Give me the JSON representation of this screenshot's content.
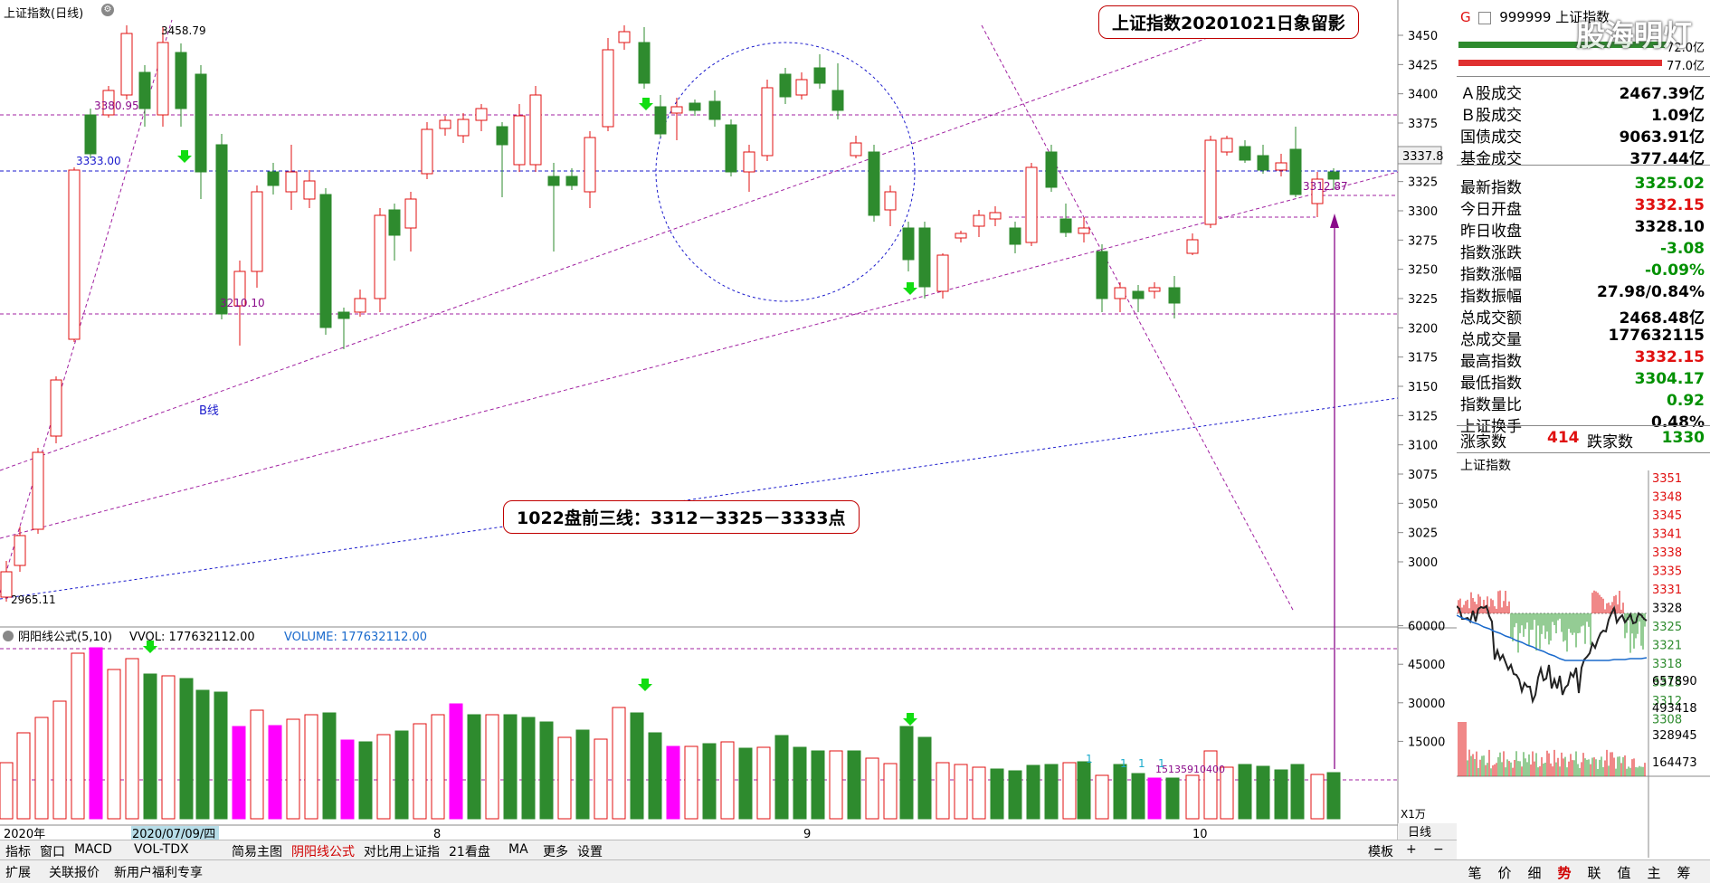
{
  "header": {
    "title": "上证指数(日线)"
  },
  "annotations": {
    "title_box": "上证指数20201021日象留影",
    "three_lines": "1022盘前三线：3312－3325－3333点",
    "b_line": "B线"
  },
  "price_labels": {
    "p3458": "3458.79",
    "p3380": "3380.95",
    "p3333": "3333.00",
    "p3210": "3210.10",
    "p2965": "2965.11",
    "p3312": "3312.87"
  },
  "price_axis": [
    "3450",
    "3425",
    "3400",
    "3375",
    "3350",
    "3325",
    "3300",
    "3275",
    "3250",
    "3225",
    "3200",
    "3175",
    "3150",
    "3125",
    "3100",
    "3075",
    "3050",
    "3025",
    "3000"
  ],
  "price_current": "3337.8",
  "date_axis": {
    "year": "2020年",
    "highlight": "2020/07/09/四",
    "m8": "8",
    "m9": "9",
    "m10": "10",
    "period": "日线"
  },
  "volume_header": {
    "name": "阴阳线公式(5,10)",
    "vvol": "VVOL: 177632112.00",
    "volume": "VOLUME: 177632112.00",
    "marker": "15135910400",
    "unit": "X1万"
  },
  "volume_axis": [
    "60000",
    "45000",
    "30000",
    "15000"
  ],
  "volume_ones": [
    "1",
    "1",
    "1",
    "1"
  ],
  "tabs": [
    "指标",
    "窗口",
    "MACD",
    "VOL-TDX",
    "简易主图",
    "阴阳线公式",
    "对比用上证指",
    "21看盘",
    "MA",
    "更多",
    "设置"
  ],
  "tabs_active": "阴阳线公式",
  "tab_right": "模板",
  "bottom_links": [
    "扩展",
    "关联报价",
    "新用户福利专享"
  ],
  "quote": {
    "code_prefix": "G",
    "code": "999999 上证指数",
    "amount_top": "72.0亿",
    "amount_bottom": "77.0亿",
    "rows": [
      {
        "label": "Ａ股成交",
        "value": "2467.39亿",
        "color": "black"
      },
      {
        "label": "Ｂ股成交",
        "value": "1.09亿",
        "color": "black"
      },
      {
        "label": "国债成交",
        "value": "9063.91亿",
        "color": "black"
      },
      {
        "label": "基金成交",
        "value": "377.44亿",
        "color": "black"
      },
      {
        "label": "最新指数",
        "value": "3325.02",
        "color": "green"
      },
      {
        "label": "今日开盘",
        "value": "3332.15",
        "color": "red"
      },
      {
        "label": "昨日收盘",
        "value": "3328.10",
        "color": "black"
      },
      {
        "label": "指数涨跌",
        "value": "-3.08",
        "color": "green"
      },
      {
        "label": "指数涨幅",
        "value": "-0.09%",
        "color": "green"
      },
      {
        "label": "指数振幅",
        "value": "27.98/0.84%",
        "color": "black"
      },
      {
        "label": "总成交额",
        "value": "2468.48亿",
        "color": "black"
      },
      {
        "label": "总成交量",
        "value": "177632115",
        "color": "black"
      },
      {
        "label": "最高指数",
        "value": "3332.15",
        "color": "red"
      },
      {
        "label": "最低指数",
        "value": "3304.17",
        "color": "green"
      },
      {
        "label": "指数量比",
        "value": "0.92",
        "color": "green"
      },
      {
        "label": "上证换手",
        "value": "0.48%",
        "color": "black"
      }
    ],
    "up_label": "涨家数",
    "up_value": "414",
    "down_label": "跌家数",
    "down_value": "1330"
  },
  "intraday": {
    "title": "上证指数",
    "price_axis": [
      "3351",
      "3348",
      "3345",
      "3341",
      "3338",
      "3335",
      "3331",
      "3328",
      "3325",
      "3321",
      "3318",
      "3315",
      "3312",
      "3308"
    ],
    "vol_axis": [
      "657890",
      "493418",
      "328945",
      "164473"
    ]
  },
  "nav": [
    "笔",
    "价",
    "细",
    "势",
    "联",
    "值",
    "主",
    "筹"
  ],
  "nav_active": "势",
  "watermark": "股海明灯",
  "colors": {
    "up": "#e01010",
    "down": "#2e8b2e",
    "pink": "#ff00ff",
    "dashed_purple": "#a020a0",
    "dashed_blue": "#1a1acc"
  }
}
